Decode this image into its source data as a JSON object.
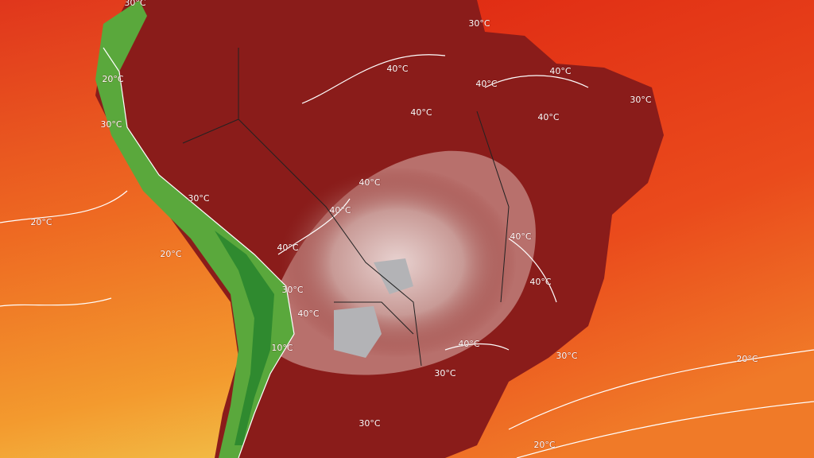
{
  "contour_labels": [
    "30°C",
    "30°C",
    "40°C",
    "40°C",
    "40°C",
    "30°C",
    "40°C",
    "40°C",
    "20°C",
    "30°C",
    "30°C",
    "40°C",
    "40°C",
    "20°C",
    "20°C",
    "40°C",
    "40°C",
    "40°C",
    "30°C",
    "40°C",
    "10°C",
    "40°C",
    "30°C",
    "30°C",
    "20°C",
    "30°C",
    "20°C"
  ]
}
